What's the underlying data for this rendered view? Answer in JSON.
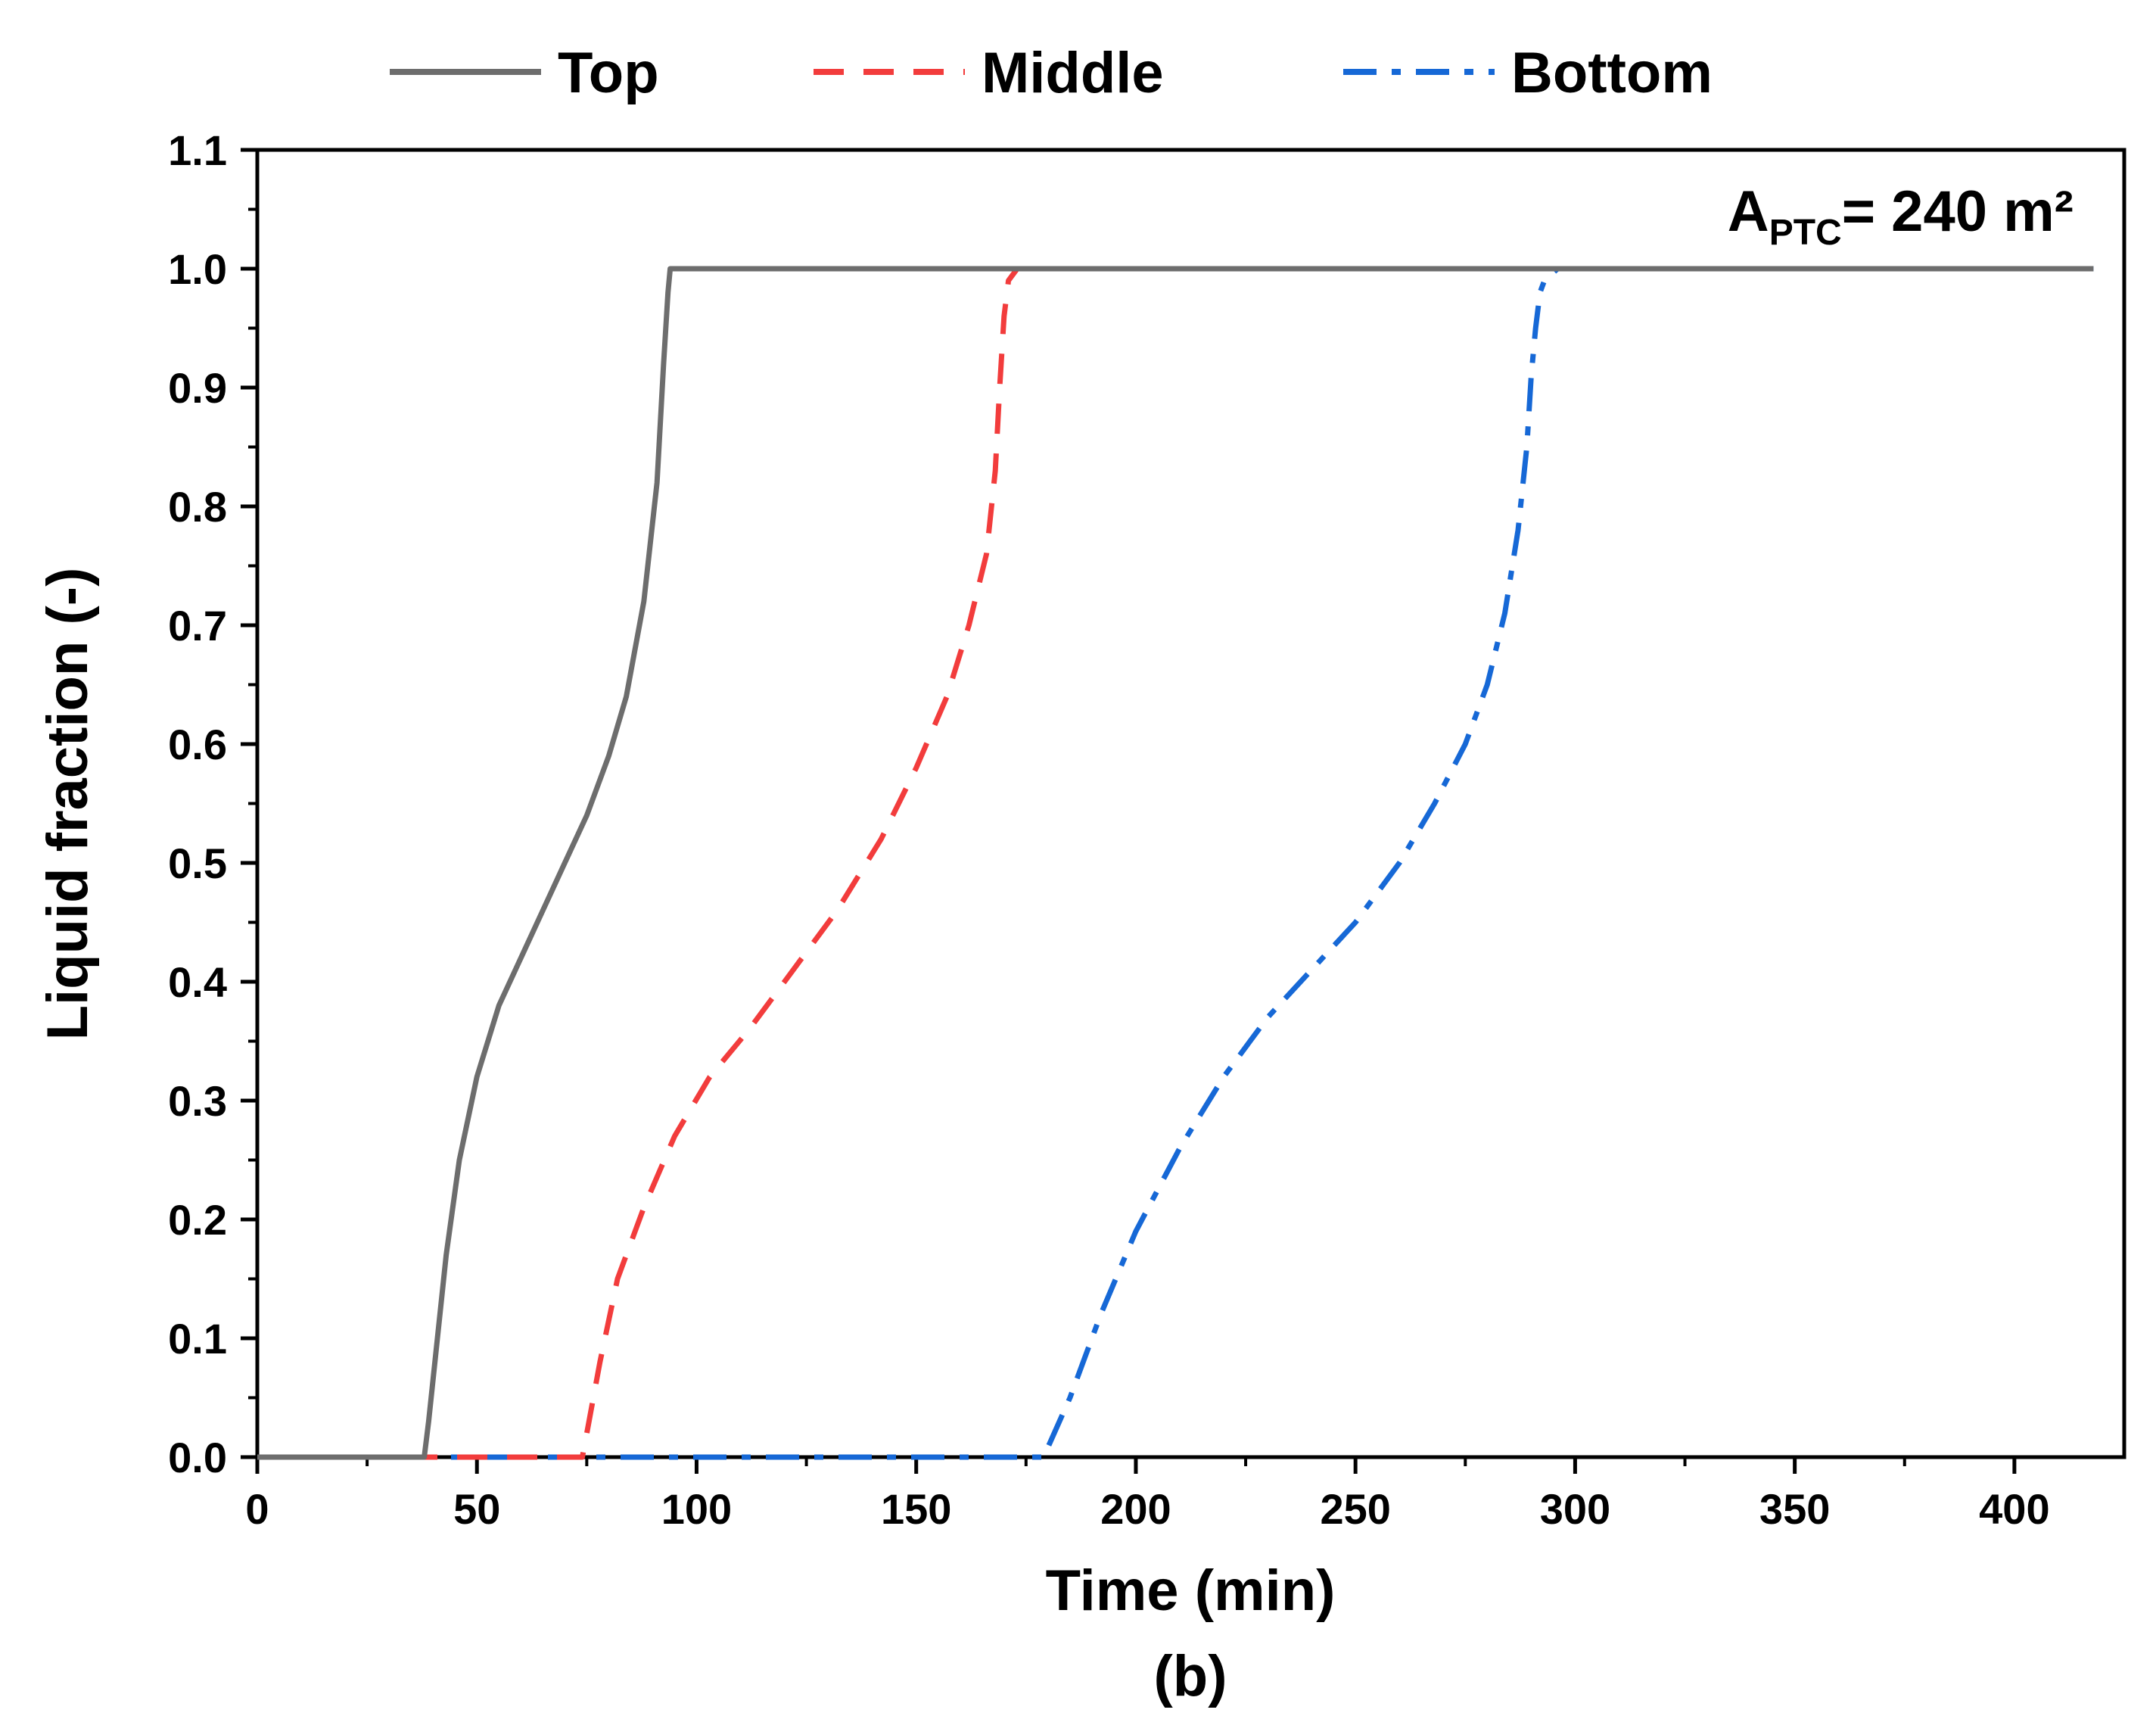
{
  "chart_data": {
    "type": "line",
    "title": "",
    "xlabel": "Time (min)",
    "ylabel": "Liquid fraction (-)",
    "xlim": [
      0,
      425
    ],
    "ylim": [
      0,
      1.1
    ],
    "xticks": [
      0,
      50,
      100,
      150,
      200,
      250,
      300,
      350,
      400
    ],
    "yticks": [
      0.0,
      0.1,
      0.2,
      0.3,
      0.4,
      0.5,
      0.6,
      0.7,
      0.8,
      0.9,
      1.0,
      1.1
    ],
    "xtick_labels": [
      "0",
      "50",
      "100",
      "150",
      "200",
      "250",
      "300",
      "350",
      "400"
    ],
    "ytick_labels": [
      "0.0",
      "0.1",
      "0.2",
      "0.3",
      "0.4",
      "0.5",
      "0.6",
      "0.7",
      "0.8",
      "0.9",
      "1.0",
      "1.1"
    ],
    "annotation": {
      "main": "A",
      "sub": "PTC",
      "rest": "= 240 m²"
    },
    "caption": "(b)",
    "legend_position": "top",
    "series": [
      {
        "name": "Top",
        "color": "#6d6d6d",
        "style": "solid",
        "x": [
          0,
          38,
          39,
          41,
          43,
          46,
          50,
          55,
          60,
          65,
          70,
          75,
          80,
          84,
          88,
          91,
          92.5,
          93.5,
          94,
          95,
          100,
          200,
          300,
          418
        ],
        "y": [
          0,
          0,
          0.03,
          0.1,
          0.17,
          0.25,
          0.32,
          0.38,
          0.42,
          0.46,
          0.5,
          0.54,
          0.59,
          0.64,
          0.72,
          0.82,
          0.92,
          0.98,
          1.0,
          1.0,
          1.0,
          1.0,
          1.0,
          1.0
        ]
      },
      {
        "name": "Middle",
        "color": "#f23c3c",
        "style": "dashed",
        "x": [
          0,
          74,
          75,
          78,
          82,
          88,
          95,
          103,
          112,
          122,
          132,
          142,
          150,
          157,
          162,
          166,
          168,
          169,
          170,
          171,
          173,
          175,
          200,
          300,
          418
        ],
        "y": [
          0,
          0,
          0.02,
          0.08,
          0.15,
          0.21,
          0.27,
          0.32,
          0.36,
          0.41,
          0.46,
          0.52,
          0.58,
          0.64,
          0.7,
          0.76,
          0.83,
          0.9,
          0.96,
          0.99,
          1.0,
          1.0,
          1.0,
          1.0,
          1.0
        ]
      },
      {
        "name": "Bottom",
        "color": "#1668d6",
        "style": "dashdot",
        "x": [
          0,
          179,
          185,
          192,
          200,
          210,
          220,
          230,
          240,
          250,
          260,
          268,
          275,
          280,
          284,
          287,
          289,
          290,
          291,
          292,
          293,
          296,
          300,
          350,
          418
        ],
        "y": [
          0,
          0,
          0.05,
          0.12,
          0.19,
          0.26,
          0.32,
          0.37,
          0.41,
          0.45,
          0.5,
          0.55,
          0.6,
          0.65,
          0.71,
          0.78,
          0.85,
          0.91,
          0.95,
          0.98,
          0.99,
          1.0,
          1.0,
          1.0,
          1.0
        ]
      }
    ]
  }
}
